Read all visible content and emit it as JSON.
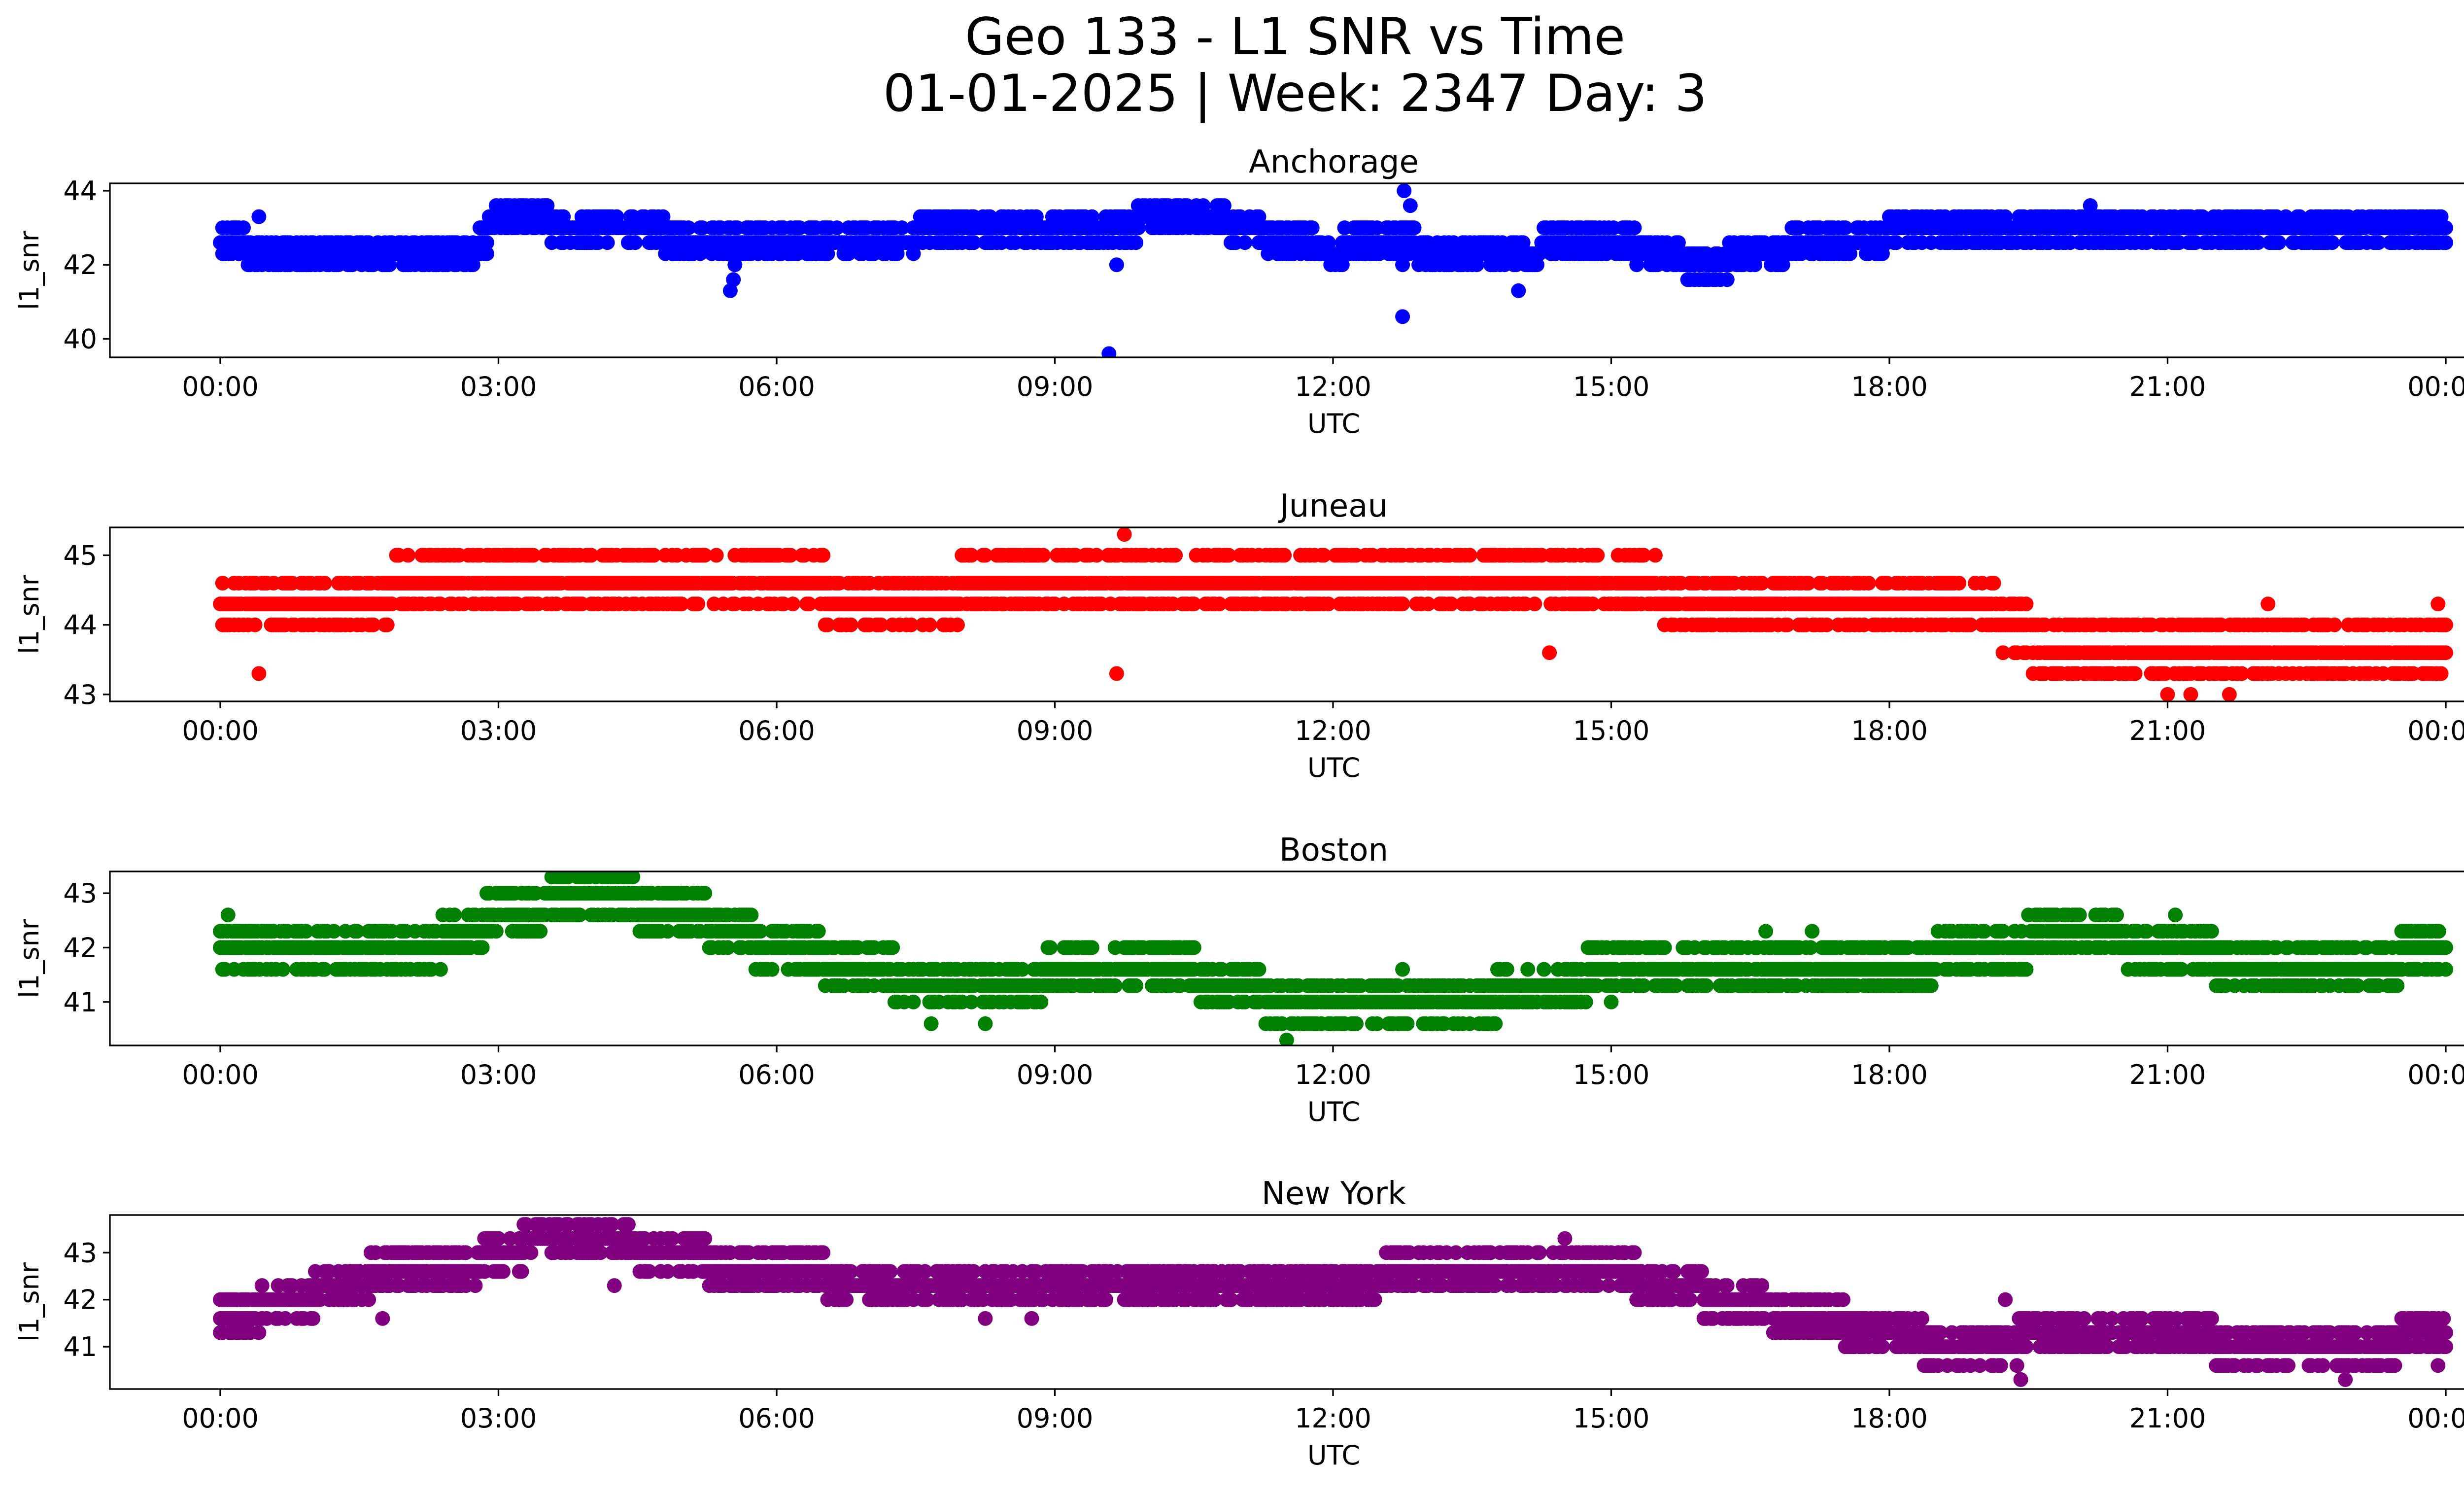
{
  "figure": {
    "title_line1": "Geo 133 - L1 SNR vs Time",
    "title_line2": "01-01-2025 | Week: 2347 Day: 3"
  },
  "chart_data": [
    {
      "type": "scatter",
      "title": "Anchorage",
      "xlabel": "UTC",
      "ylabel": "l1_snr",
      "color": "#0000ff",
      "xlim": [
        "2025-01-01 00:00",
        "2025-01-02 00:00"
      ],
      "ylim": [
        39.5,
        44.2
      ],
      "x_ticks": [
        "00:00",
        "03:00",
        "06:00",
        "09:00",
        "12:00",
        "15:00",
        "18:00",
        "21:00",
        "00:00"
      ],
      "y_ticks": [
        40,
        42,
        44
      ],
      "levels": [
        41.3,
        41.6,
        42.0,
        42.3,
        42.6,
        43.0,
        43.3,
        43.6
      ],
      "series": [
        {
          "x": [
            "00:00",
            "00:30",
            "02:45",
            "02:50",
            "03:00",
            "05:30",
            "06:00",
            "09:00",
            "10:45",
            "11:00",
            "12:00",
            "12:15",
            "13:30",
            "15:00",
            "16:00",
            "16:30",
            "18:30",
            "21:00",
            "24:00"
          ],
          "y": [
            42.6,
            42.3,
            42.3,
            42.6,
            43.3,
            42.6,
            42.6,
            43.0,
            43.3,
            43.0,
            42.3,
            42.6,
            42.3,
            42.6,
            42.0,
            42.3,
            43.0,
            43.0,
            43.0
          ]
        }
      ],
      "outliers": [
        {
          "x": "05:30",
          "y": 41.3
        },
        {
          "x": "05:32",
          "y": 41.6
        },
        {
          "x": "05:33",
          "y": 42.0
        },
        {
          "x": "09:35",
          "y": 39.6
        },
        {
          "x": "09:40",
          "y": 42.0
        },
        {
          "x": "12:45",
          "y": 40.6
        },
        {
          "x": "12:45",
          "y": 42.0
        },
        {
          "x": "12:46",
          "y": 44.0
        },
        {
          "x": "12:50",
          "y": 43.6
        },
        {
          "x": "14:00",
          "y": 41.3
        },
        {
          "x": "16:15",
          "y": 41.6
        },
        {
          "x": "20:10",
          "y": 43.6
        },
        {
          "x": "03:30",
          "y": 43.6
        },
        {
          "x": "00:25",
          "y": 43.3
        }
      ]
    },
    {
      "type": "scatter",
      "title": "Juneau",
      "xlabel": "UTC",
      "ylabel": "l1_snr",
      "color": "#ff0000",
      "xlim": [
        "2025-01-01 00:00",
        "2025-01-02 00:00"
      ],
      "ylim": [
        42.9,
        45.4
      ],
      "x_ticks": [
        "00:00",
        "03:00",
        "06:00",
        "09:00",
        "12:00",
        "15:00",
        "18:00",
        "21:00",
        "00:00"
      ],
      "y_ticks": [
        43,
        44,
        45
      ],
      "levels": [
        43.0,
        43.3,
        43.6,
        44.0,
        44.3,
        44.6,
        45.0,
        45.3
      ],
      "series": [
        {
          "x": [
            "00:00",
            "01:00",
            "02:45",
            "03:00",
            "06:00",
            "07:00",
            "09:00",
            "10:00",
            "12:00",
            "15:00",
            "16:00",
            "18:00",
            "19:00",
            "19:45",
            "20:15",
            "21:00",
            "22:00",
            "24:00"
          ],
          "y": [
            44.3,
            44.3,
            44.6,
            44.6,
            44.6,
            44.3,
            44.6,
            44.6,
            44.6,
            44.6,
            44.3,
            44.3,
            44.3,
            43.6,
            43.6,
            43.6,
            43.6,
            43.6
          ]
        }
      ],
      "outliers": [
        {
          "x": "00:25",
          "y": 43.3
        },
        {
          "x": "09:40",
          "y": 43.3
        },
        {
          "x": "09:45",
          "y": 45.3
        },
        {
          "x": "14:20",
          "y": 43.6
        },
        {
          "x": "21:00",
          "y": 43.0
        },
        {
          "x": "21:15",
          "y": 43.0
        },
        {
          "x": "21:40",
          "y": 43.0
        },
        {
          "x": "22:05",
          "y": 44.3
        },
        {
          "x": "23:55",
          "y": 44.3
        }
      ]
    },
    {
      "type": "scatter",
      "title": "Boston",
      "xlabel": "UTC",
      "ylabel": "l1_snr",
      "color": "#008000",
      "xlim": [
        "2025-01-01 00:00",
        "2025-01-02 00:00"
      ],
      "ylim": [
        40.2,
        43.4
      ],
      "x_ticks": [
        "00:00",
        "03:00",
        "06:00",
        "09:00",
        "12:00",
        "15:00",
        "18:00",
        "21:00",
        "00:00"
      ],
      "y_ticks": [
        41,
        42,
        43
      ],
      "levels": [
        40.3,
        40.6,
        41.0,
        41.3,
        41.6,
        42.0,
        42.3,
        42.6,
        43.0,
        43.3
      ],
      "series": [
        {
          "x": [
            "00:00",
            "01:00",
            "02:00",
            "02:45",
            "03:00",
            "04:00",
            "05:00",
            "06:00",
            "07:00",
            "07:30",
            "08:30",
            "09:15",
            "10:00",
            "11:00",
            "11:30",
            "12:00",
            "13:00",
            "14:30",
            "15:00",
            "16:00",
            "18:00",
            "19:00",
            "20:00",
            "21:00",
            "22:00",
            "23:00",
            "24:00"
          ],
          "y": [
            42.0,
            42.0,
            42.0,
            42.3,
            42.6,
            43.0,
            42.6,
            42.0,
            41.6,
            41.3,
            41.3,
            41.6,
            41.6,
            41.3,
            41.0,
            41.0,
            41.0,
            41.3,
            41.6,
            41.6,
            41.6,
            42.0,
            42.3,
            42.0,
            41.6,
            41.6,
            42.0
          ]
        }
      ],
      "outliers": [
        {
          "x": "00:05",
          "y": 42.6
        },
        {
          "x": "03:35",
          "y": 43.3
        },
        {
          "x": "04:20",
          "y": 43.3
        },
        {
          "x": "07:40",
          "y": 40.6
        },
        {
          "x": "08:15",
          "y": 40.6
        },
        {
          "x": "11:30",
          "y": 40.3
        },
        {
          "x": "12:45",
          "y": 41.6
        },
        {
          "x": "15:00",
          "y": 41.0
        },
        {
          "x": "16:40",
          "y": 42.3
        },
        {
          "x": "17:10",
          "y": 42.3
        },
        {
          "x": "19:30",
          "y": 42.6
        },
        {
          "x": "21:05",
          "y": 42.6
        }
      ]
    },
    {
      "type": "scatter",
      "title": "New York",
      "xlabel": "UTC",
      "ylabel": "l1_snr",
      "color": "#800080",
      "xlim": [
        "2025-01-01 00:00",
        "2025-01-02 00:00"
      ],
      "ylim": [
        40.1,
        43.8
      ],
      "x_ticks": [
        "00:00",
        "03:00",
        "06:00",
        "09:00",
        "12:00",
        "15:00",
        "18:00",
        "21:00",
        "00:00"
      ],
      "y_ticks": [
        41,
        42,
        43
      ],
      "levels": [
        40.3,
        40.6,
        41.0,
        41.3,
        41.6,
        42.0,
        42.3,
        42.6,
        43.0,
        43.3,
        43.6
      ],
      "series": [
        {
          "x": [
            "00:00",
            "00:45",
            "01:15",
            "02:00",
            "02:30",
            "03:00",
            "03:30",
            "04:00",
            "05:00",
            "05:30",
            "06:00",
            "07:00",
            "07:30",
            "09:00",
            "10:00",
            "11:00",
            "12:00",
            "13:00",
            "14:00",
            "15:00",
            "15:30",
            "16:30",
            "17:00",
            "18:00",
            "18:45",
            "20:00",
            "21:00",
            "22:00",
            "23:00",
            "24:00"
          ],
          "y": [
            41.6,
            42.0,
            42.3,
            42.6,
            42.6,
            43.0,
            43.3,
            43.3,
            43.0,
            42.6,
            42.6,
            42.3,
            42.3,
            42.3,
            42.3,
            42.3,
            42.3,
            42.6,
            42.6,
            42.6,
            42.3,
            42.0,
            41.6,
            41.3,
            41.0,
            41.3,
            41.3,
            41.0,
            41.0,
            41.3
          ]
        }
      ],
      "outliers": [
        {
          "x": "00:25",
          "y": 41.3
        },
        {
          "x": "01:45",
          "y": 41.6
        },
        {
          "x": "03:45",
          "y": 43.6
        },
        {
          "x": "04:15",
          "y": 42.3
        },
        {
          "x": "08:15",
          "y": 41.6
        },
        {
          "x": "08:45",
          "y": 41.6
        },
        {
          "x": "14:30",
          "y": 43.3
        },
        {
          "x": "17:15",
          "y": 41.3
        },
        {
          "x": "19:15",
          "y": 42.0
        },
        {
          "x": "19:25",
          "y": 40.3
        },
        {
          "x": "22:55",
          "y": 40.3
        },
        {
          "x": "23:55",
          "y": 40.6
        }
      ]
    }
  ]
}
